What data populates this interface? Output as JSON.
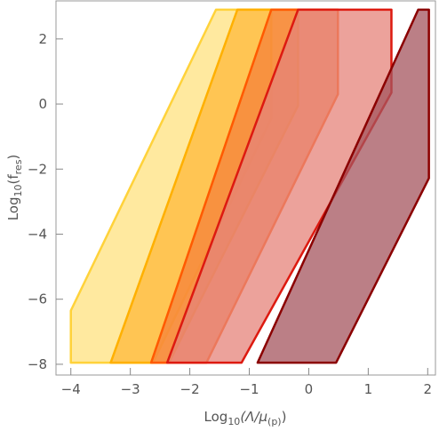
{
  "chart_data": {
    "type": "region",
    "xlabel": [
      "Log",
      "10",
      "(Λ/μ",
      "(p)",
      ")"
    ],
    "ylabel": [
      "Log",
      "10",
      "(f",
      "res",
      ")"
    ],
    "xlim": [
      -4.25,
      2.13
    ],
    "ylim": [
      -8.33,
      3.17
    ],
    "xticks": [
      {
        "value": -4,
        "label": "−4"
      },
      {
        "value": -3,
        "label": "−3"
      },
      {
        "value": -2,
        "label": "−2"
      },
      {
        "value": -1,
        "label": "−1"
      },
      0,
      1,
      2
    ],
    "yticks": [
      {
        "value": -8,
        "label": "−8"
      },
      {
        "value": -6,
        "label": "−6"
      },
      {
        "value": -4,
        "label": "−4"
      },
      {
        "value": -2,
        "label": "−2"
      },
      0,
      2
    ],
    "series": [
      {
        "color": "#ffe27f",
        "stroke": "#ffd23a",
        "x": [
          -4,
          -4,
          -1.56,
          -0.63,
          -0.63,
          -2.62
        ],
        "y": [
          -7.95,
          -6.35,
          2.9,
          2.9,
          -0.45,
          -7.95
        ]
      },
      {
        "color": "#ffb83a",
        "stroke": "#ffb000",
        "x": [
          -3.33,
          -1.2,
          -0.18,
          -0.18,
          -2.35
        ],
        "y": [
          -7.95,
          2.9,
          2.9,
          -0.05,
          -7.95
        ]
      },
      {
        "color": "#f5803a",
        "stroke": "#ff5a00",
        "x": [
          -2.65,
          -0.63,
          0.49,
          0.49,
          -1.72
        ],
        "y": [
          -7.95,
          2.9,
          2.9,
          0.3,
          -7.95
        ]
      },
      {
        "color": "#e6837a",
        "stroke": "#dd1a10",
        "x": [
          -2.38,
          -0.18,
          1.39,
          1.39,
          -1.13
        ],
        "y": [
          -7.95,
          2.9,
          2.9,
          0.35,
          -7.95
        ]
      },
      {
        "color": "#a4545e",
        "stroke": "#8b0000",
        "x": [
          -0.86,
          1.84,
          2.02,
          2.02,
          0.46
        ],
        "y": [
          -7.95,
          2.9,
          2.9,
          -2.28,
          -7.95
        ]
      }
    ]
  }
}
